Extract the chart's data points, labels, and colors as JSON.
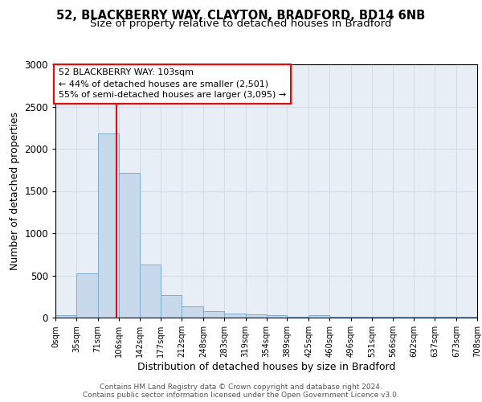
{
  "title1": "52, BLACKBERRY WAY, CLAYTON, BRADFORD, BD14 6NB",
  "title2": "Size of property relative to detached houses in Bradford",
  "xlabel": "Distribution of detached houses by size in Bradford",
  "ylabel": "Number of detached properties",
  "bin_edges": [
    0,
    35,
    71,
    106,
    142,
    177,
    212,
    248,
    283,
    319,
    354,
    389,
    425,
    460,
    496,
    531,
    566,
    602,
    637,
    673,
    708
  ],
  "bar_heights": [
    30,
    520,
    2180,
    1710,
    630,
    270,
    130,
    75,
    45,
    35,
    30,
    10,
    30,
    5,
    5,
    5,
    5,
    5,
    5,
    5
  ],
  "bar_color": "#c9d9ec",
  "bar_edge_color": "#7aadcf",
  "red_line_x": 103,
  "ylim": [
    0,
    3000
  ],
  "yticks": [
    0,
    500,
    1000,
    1500,
    2000,
    2500,
    3000
  ],
  "xtick_labels": [
    "0sqm",
    "35sqm",
    "71sqm",
    "106sqm",
    "142sqm",
    "177sqm",
    "212sqm",
    "248sqm",
    "283sqm",
    "319sqm",
    "354sqm",
    "389sqm",
    "425sqm",
    "460sqm",
    "496sqm",
    "531sqm",
    "566sqm",
    "602sqm",
    "637sqm",
    "673sqm",
    "708sqm"
  ],
  "annotation_text": "52 BLACKBERRY WAY: 103sqm\n← 44% of detached houses are smaller (2,501)\n55% of semi-detached houses are larger (3,095) →",
  "annotation_box_color": "white",
  "annotation_box_edge_color": "red",
  "grid_color": "#d5dde8",
  "bg_color": "#e8eef5",
  "footer_line1": "Contains HM Land Registry data © Crown copyright and database right 2024.",
  "footer_line2": "Contains public sector information licensed under the Open Government Licence v3.0.",
  "title1_fontsize": 10.5,
  "title2_fontsize": 9.5,
  "xlabel_fontsize": 9,
  "ylabel_fontsize": 9,
  "annot_fontsize": 8,
  "footer_fontsize": 6.5
}
